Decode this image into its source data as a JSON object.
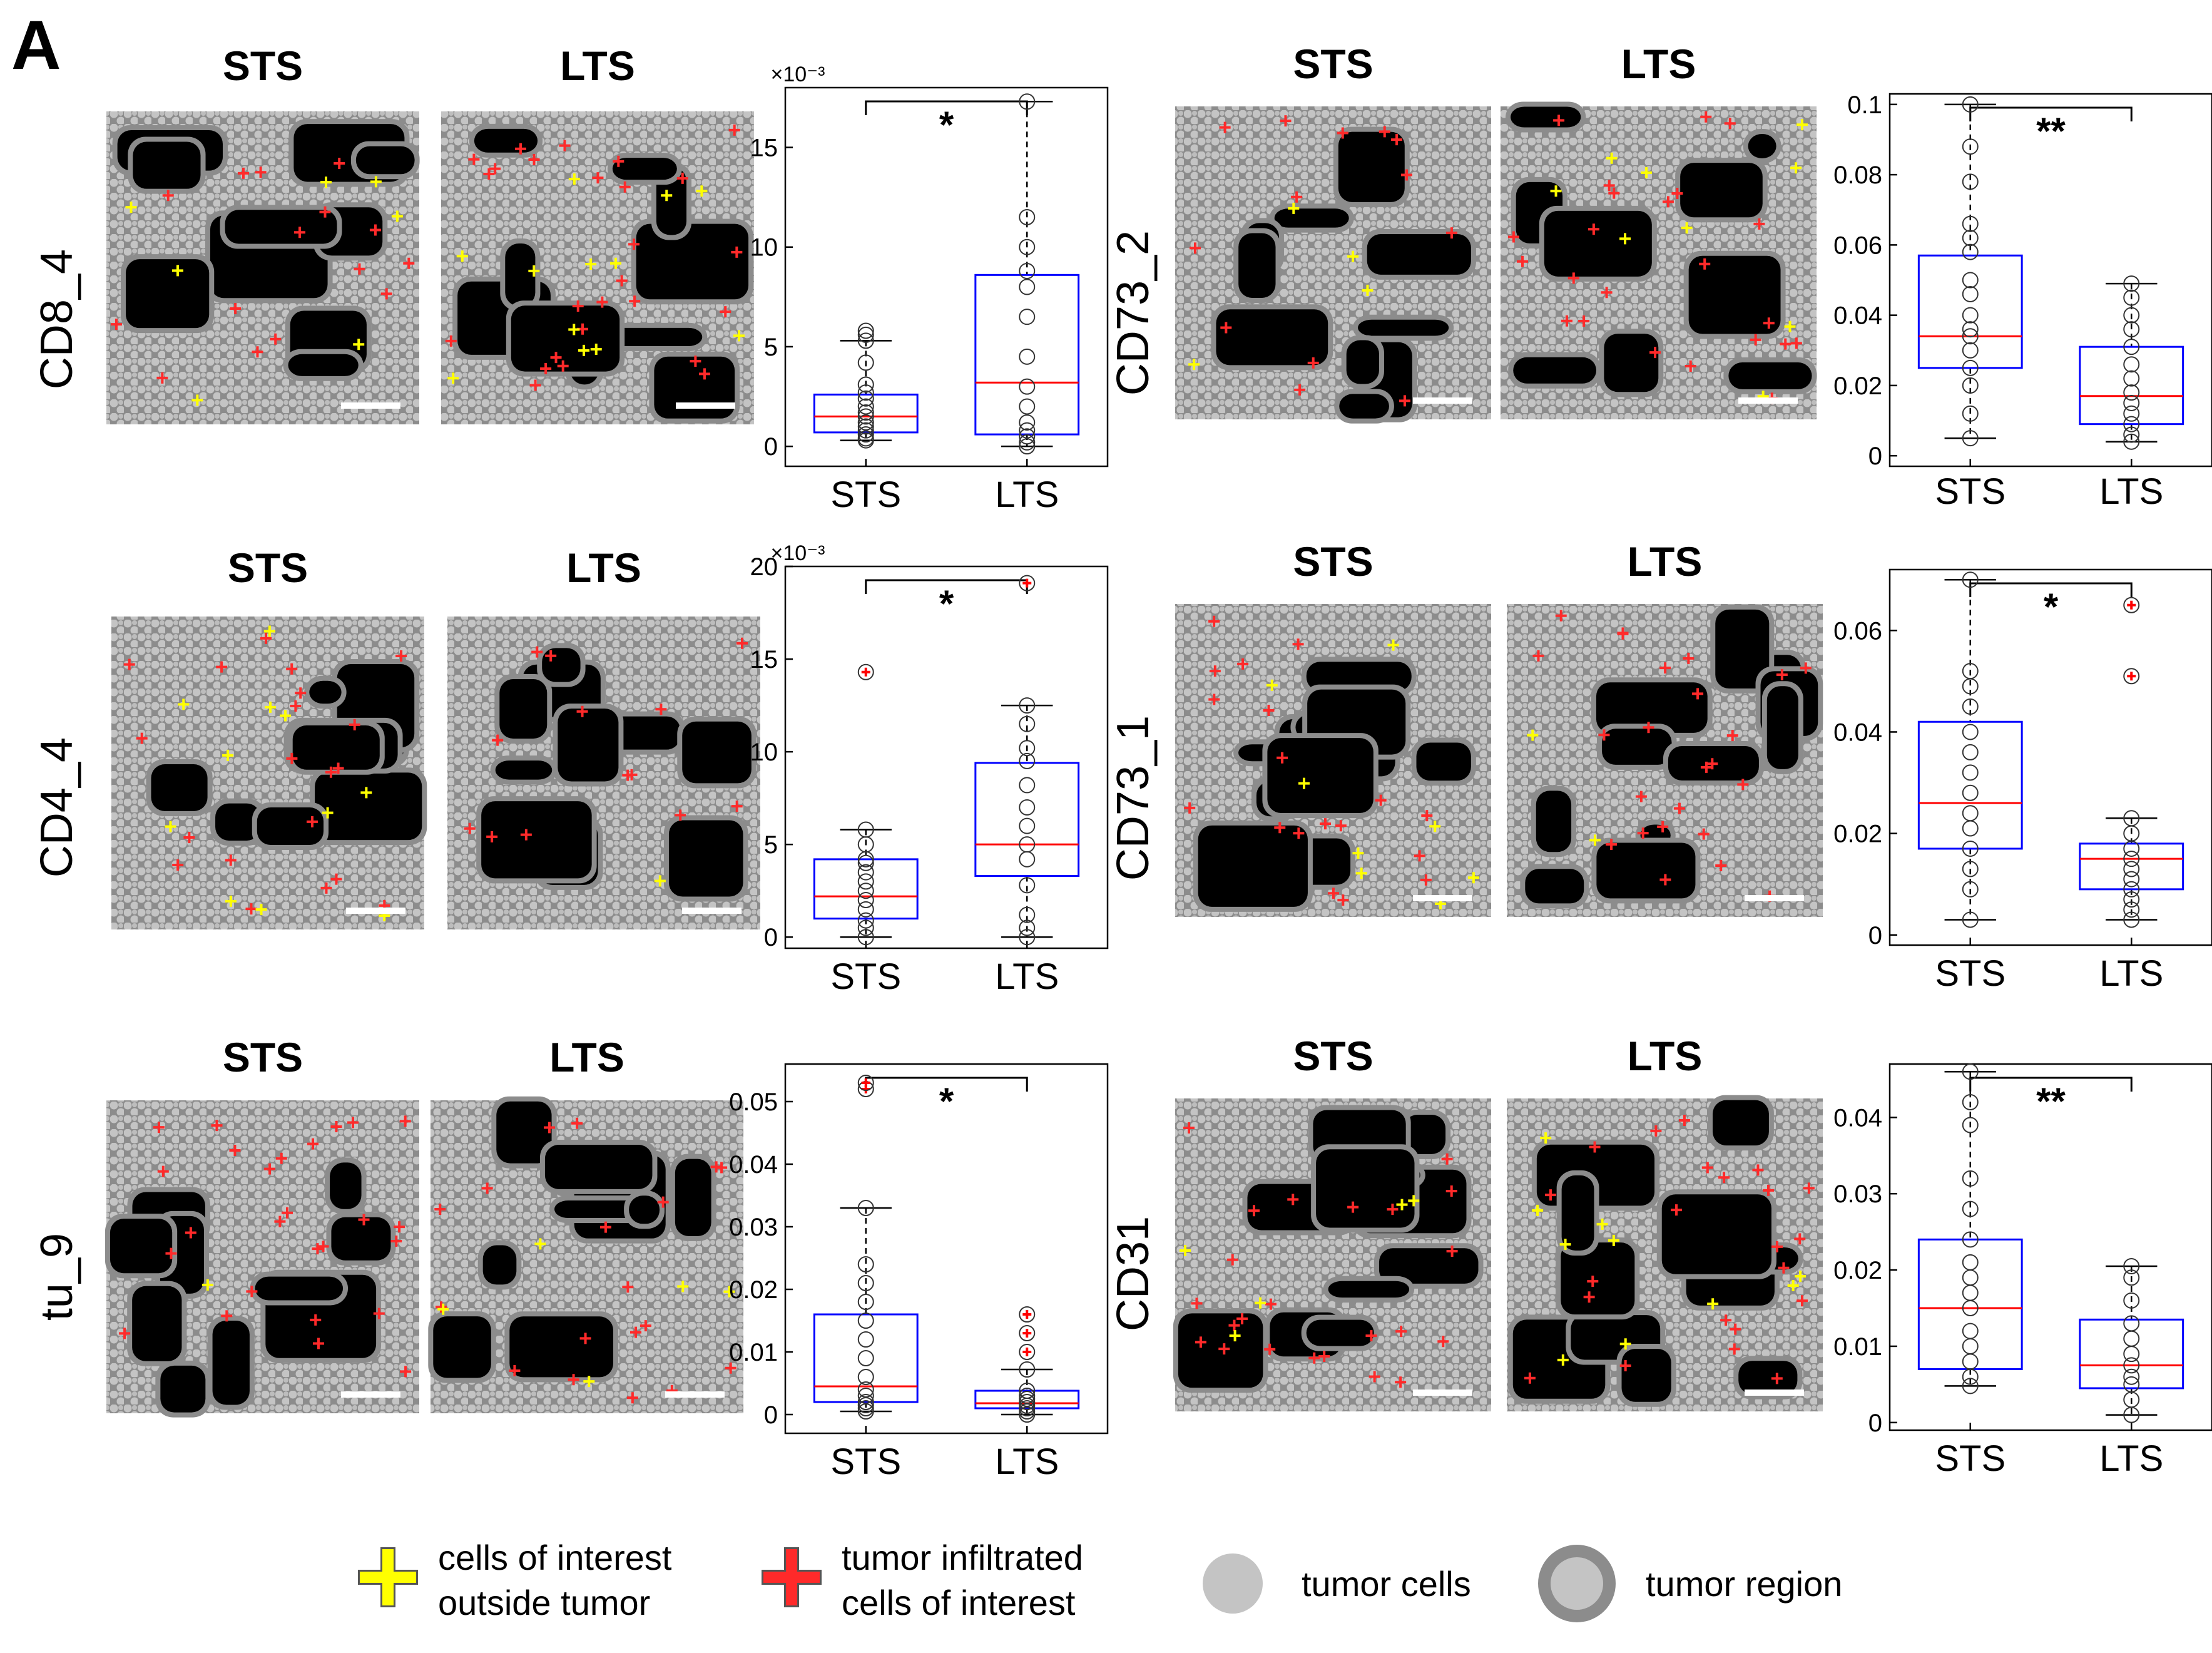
{
  "figure": {
    "panel_label": "A",
    "legend": [
      {
        "icon": "yellow-plus-icon",
        "lines": [
          "cells of interest",
          "outside tumor"
        ]
      },
      {
        "icon": "red-plus-icon",
        "lines": [
          "tumor infiltrated",
          "cells of interest"
        ]
      },
      {
        "icon": "gray-dot-icon",
        "lines": [
          "tumor cells"
        ]
      },
      {
        "icon": "gray-ring-icon",
        "lines": [
          "tumor region"
        ]
      }
    ],
    "colors": {
      "background_region": "#000000",
      "tumor_region": "#8c8c8c",
      "tumor_cells": "#c4c4c4",
      "marker_inside": "#ff2a2a",
      "marker_outside": "#ffff00",
      "box": "#0000ff",
      "median": "#ff0000",
      "scalebar": "#ffffff"
    }
  },
  "chart_data": [
    {
      "type": "box",
      "row_label": "CD8_4",
      "image_titles": [
        "STS",
        "LTS"
      ],
      "categories": [
        "STS",
        "LTS"
      ],
      "multiplier": "×10⁻³",
      "significance": "*",
      "ylim": [
        -1,
        18
      ],
      "yticks": [
        0,
        5,
        10,
        15
      ],
      "ytick_labels": [
        "0",
        "5",
        "10",
        "15"
      ],
      "series": [
        {
          "whisker_low": 0.3,
          "q1": 0.7,
          "median": 1.5,
          "q3": 2.6,
          "whisker_high": 5.3,
          "points": [
            0.3,
            0.4,
            0.6,
            0.8,
            1.0,
            1.2,
            1.5,
            1.7,
            2.0,
            2.4,
            2.7,
            3.1,
            4.2,
            5.3,
            5.6,
            5.8
          ],
          "outliers": []
        },
        {
          "whisker_low": 0,
          "q1": 0.6,
          "median": 3.2,
          "q3": 8.6,
          "whisker_high": 17.3,
          "points": [
            0,
            0.2,
            0.5,
            0.8,
            1.2,
            2.0,
            3.0,
            4.5,
            6.5,
            8.0,
            8.8,
            10.0,
            11.5,
            17.3
          ],
          "outliers": []
        }
      ]
    },
    {
      "type": "box",
      "row_label": "CD4_4",
      "image_titles": [
        "STS",
        "LTS"
      ],
      "categories": [
        "STS",
        "LTS"
      ],
      "multiplier": "×10⁻³",
      "significance": "*",
      "ylim": [
        -0.6,
        20
      ],
      "yticks": [
        0,
        5,
        10,
        15,
        20
      ],
      "ytick_labels": [
        "0",
        "5",
        "10",
        "15",
        "20"
      ],
      "series": [
        {
          "whisker_low": 0,
          "q1": 1.0,
          "median": 2.2,
          "q3": 4.2,
          "whisker_high": 5.8,
          "points": [
            0,
            0.5,
            0.9,
            1.5,
            2.0,
            2.5,
            3.0,
            3.5,
            4.0,
            4.2,
            5.0,
            5.8
          ],
          "outliers": [
            14.3
          ]
        },
        {
          "whisker_low": 0,
          "q1": 3.3,
          "median": 5.0,
          "q3": 9.4,
          "whisker_high": 12.5,
          "points": [
            0,
            0.5,
            1.2,
            2.8,
            4.2,
            5.0,
            6.0,
            7.0,
            8.2,
            9.5,
            10.2,
            11.5,
            12.5
          ],
          "outliers": [
            19.1
          ]
        }
      ]
    },
    {
      "type": "box",
      "row_label": "tu_9",
      "image_titles": [
        "STS",
        "LTS"
      ],
      "categories": [
        "STS",
        "LTS"
      ],
      "multiplier": "",
      "significance": "*",
      "ylim": [
        -0.003,
        0.056
      ],
      "yticks": [
        0,
        0.01,
        0.02,
        0.03,
        0.04,
        0.05
      ],
      "ytick_labels": [
        "0",
        "0.01",
        "0.02",
        "0.03",
        "0.04",
        "0.05"
      ],
      "series": [
        {
          "whisker_low": 0.0005,
          "q1": 0.002,
          "median": 0.0045,
          "q3": 0.016,
          "whisker_high": 0.033,
          "points": [
            0.0005,
            0.001,
            0.0015,
            0.002,
            0.003,
            0.004,
            0.006,
            0.009,
            0.012,
            0.015,
            0.018,
            0.021,
            0.024,
            0.033
          ],
          "outliers": [
            0.052,
            0.053
          ]
        },
        {
          "whisker_low": 0,
          "q1": 0.001,
          "median": 0.0018,
          "q3": 0.0038,
          "whisker_high": 0.0072,
          "points": [
            0,
            0.0005,
            0.001,
            0.0014,
            0.002,
            0.0025,
            0.003,
            0.0038,
            0.0072
          ],
          "outliers": [
            0.01,
            0.013,
            0.016
          ]
        }
      ]
    },
    {
      "type": "box",
      "row_label": "CD73_2",
      "image_titles": [
        "STS",
        "LTS"
      ],
      "categories": [
        "STS",
        "LTS"
      ],
      "multiplier": "",
      "significance": "**",
      "ylim": [
        -0.003,
        0.103
      ],
      "yticks": [
        0,
        0.02,
        0.04,
        0.06,
        0.08,
        0.1
      ],
      "ytick_labels": [
        "0",
        "0.02",
        "0.04",
        "0.06",
        "0.08",
        "0.1"
      ],
      "series": [
        {
          "whisker_low": 0.005,
          "q1": 0.025,
          "median": 0.034,
          "q3": 0.057,
          "whisker_high": 0.1,
          "points": [
            0.005,
            0.012,
            0.02,
            0.025,
            0.03,
            0.034,
            0.036,
            0.04,
            0.046,
            0.05,
            0.058,
            0.062,
            0.066,
            0.078,
            0.088,
            0.1
          ],
          "outliers": []
        },
        {
          "whisker_low": 0.004,
          "q1": 0.009,
          "median": 0.017,
          "q3": 0.031,
          "whisker_high": 0.049,
          "points": [
            0.004,
            0.006,
            0.009,
            0.012,
            0.015,
            0.018,
            0.022,
            0.026,
            0.031,
            0.036,
            0.04,
            0.045,
            0.049
          ],
          "outliers": []
        }
      ]
    },
    {
      "type": "box",
      "row_label": "CD73_1",
      "image_titles": [
        "STS",
        "LTS"
      ],
      "categories": [
        "STS",
        "LTS"
      ],
      "multiplier": "",
      "significance": "*",
      "ylim": [
        -0.002,
        0.072
      ],
      "yticks": [
        0,
        0.02,
        0.04,
        0.06
      ],
      "ytick_labels": [
        "0",
        "0.02",
        "0.04",
        "0.06"
      ],
      "series": [
        {
          "whisker_low": 0.003,
          "q1": 0.017,
          "median": 0.026,
          "q3": 0.042,
          "whisker_high": 0.07,
          "points": [
            0.003,
            0.009,
            0.013,
            0.017,
            0.021,
            0.024,
            0.028,
            0.032,
            0.036,
            0.04,
            0.045,
            0.049,
            0.052,
            0.07
          ],
          "outliers": []
        },
        {
          "whisker_low": 0.003,
          "q1": 0.009,
          "median": 0.015,
          "q3": 0.018,
          "whisker_high": 0.023,
          "points": [
            0.003,
            0.005,
            0.007,
            0.009,
            0.011,
            0.013,
            0.015,
            0.017,
            0.02,
            0.023
          ],
          "outliers": [
            0.051,
            0.065
          ]
        }
      ]
    },
    {
      "type": "box",
      "row_label": "CD31",
      "image_titles": [
        "STS",
        "LTS"
      ],
      "categories": [
        "STS",
        "LTS"
      ],
      "multiplier": "",
      "significance": "**",
      "ylim": [
        -0.001,
        0.047
      ],
      "yticks": [
        0,
        0.01,
        0.02,
        0.03,
        0.04
      ],
      "ytick_labels": [
        "0",
        "0.01",
        "0.02",
        "0.03",
        "0.04"
      ],
      "series": [
        {
          "whisker_low": 0.0048,
          "q1": 0.007,
          "median": 0.015,
          "q3": 0.024,
          "whisker_high": 0.046,
          "points": [
            0.0048,
            0.006,
            0.008,
            0.01,
            0.012,
            0.015,
            0.017,
            0.019,
            0.021,
            0.024,
            0.028,
            0.032,
            0.039,
            0.042,
            0.046
          ],
          "outliers": []
        },
        {
          "whisker_low": 0.001,
          "q1": 0.0045,
          "median": 0.0075,
          "q3": 0.0135,
          "whisker_high": 0.0205,
          "points": [
            0.001,
            0.003,
            0.005,
            0.006,
            0.0075,
            0.009,
            0.011,
            0.013,
            0.016,
            0.019,
            0.0205
          ],
          "outliers": []
        }
      ]
    }
  ]
}
